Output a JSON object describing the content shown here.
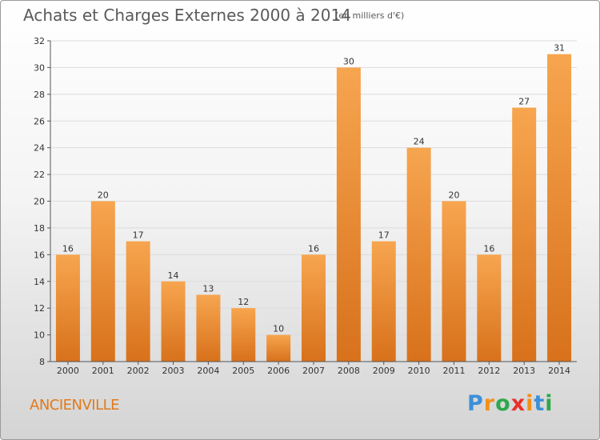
{
  "chart_data": {
    "type": "bar",
    "title": "Achats et Charges Externes 2000 à 2014",
    "subtitle": "(en milliers d'€)",
    "categories": [
      "2000",
      "2001",
      "2002",
      "2003",
      "2004",
      "2005",
      "2006",
      "2007",
      "2008",
      "2009",
      "2010",
      "2011",
      "2012",
      "2013",
      "2014"
    ],
    "values": [
      16,
      20,
      17,
      14,
      13,
      12,
      10,
      16,
      30,
      17,
      24,
      20,
      16,
      27,
      31
    ],
    "ylim": [
      8,
      32
    ],
    "yticks": [
      8,
      10,
      12,
      14,
      16,
      18,
      20,
      22,
      24,
      26,
      28,
      30,
      32
    ],
    "grid": true,
    "bar_color_top": "#f7a54f",
    "bar_color_bottom": "#d8711b"
  },
  "commune": "ANCIENVILLE",
  "brand": {
    "letters": [
      "P",
      "r",
      "o",
      "x",
      "i",
      "t",
      "i"
    ],
    "colors": [
      "#3d8fd8",
      "#f29019",
      "#2ea84a",
      "#e8312a",
      "#f29019",
      "#3d8fd8",
      "#2ea84a"
    ]
  }
}
